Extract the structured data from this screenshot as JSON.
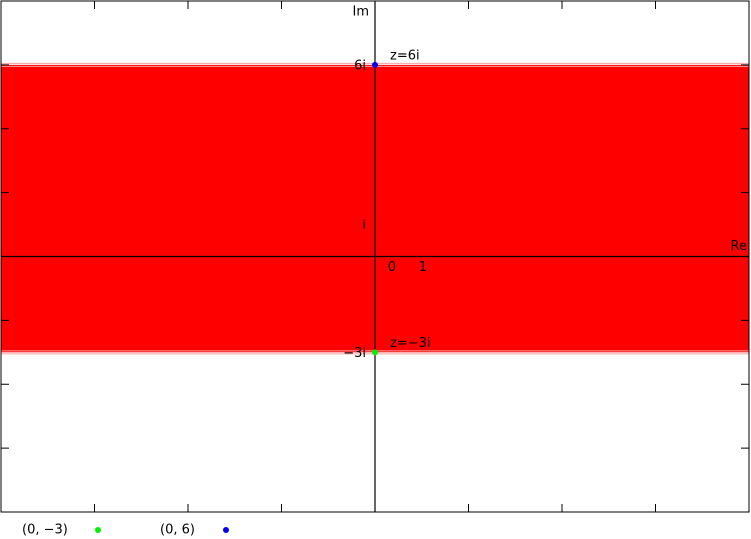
{
  "chart_data": {
    "type": "complex-region",
    "xlabel": "Re",
    "ylabel": "Im",
    "xlim": [
      -12,
      12
    ],
    "ylim": [
      -8,
      8
    ],
    "xticks": [
      -9,
      -6,
      -3,
      0,
      3,
      6,
      9
    ],
    "yticks": [
      -6,
      -4,
      -2,
      0,
      2,
      4,
      6
    ],
    "band": {
      "ymin": -3,
      "ymax": 6,
      "color": "#ff0000"
    },
    "axis_annotations": [
      {
        "label": "6i",
        "axis": "y",
        "value": 6
      },
      {
        "label": "i",
        "axis": "y",
        "value": 1
      },
      {
        "label": "−3i",
        "axis": "y",
        "value": -3
      },
      {
        "label": "0",
        "axis": "x",
        "value": 0
      },
      {
        "label": "1",
        "axis": "x",
        "value": 1
      }
    ],
    "series": [
      {
        "name": "(0, −3)",
        "color": "#00ee00",
        "x": [
          0
        ],
        "values": [
          -3
        ],
        "point_label": "z=−3i"
      },
      {
        "name": "(0, 6)",
        "color": "#0000ee",
        "x": [
          0
        ],
        "values": [
          6
        ],
        "point_label": "z=6i"
      }
    ]
  }
}
